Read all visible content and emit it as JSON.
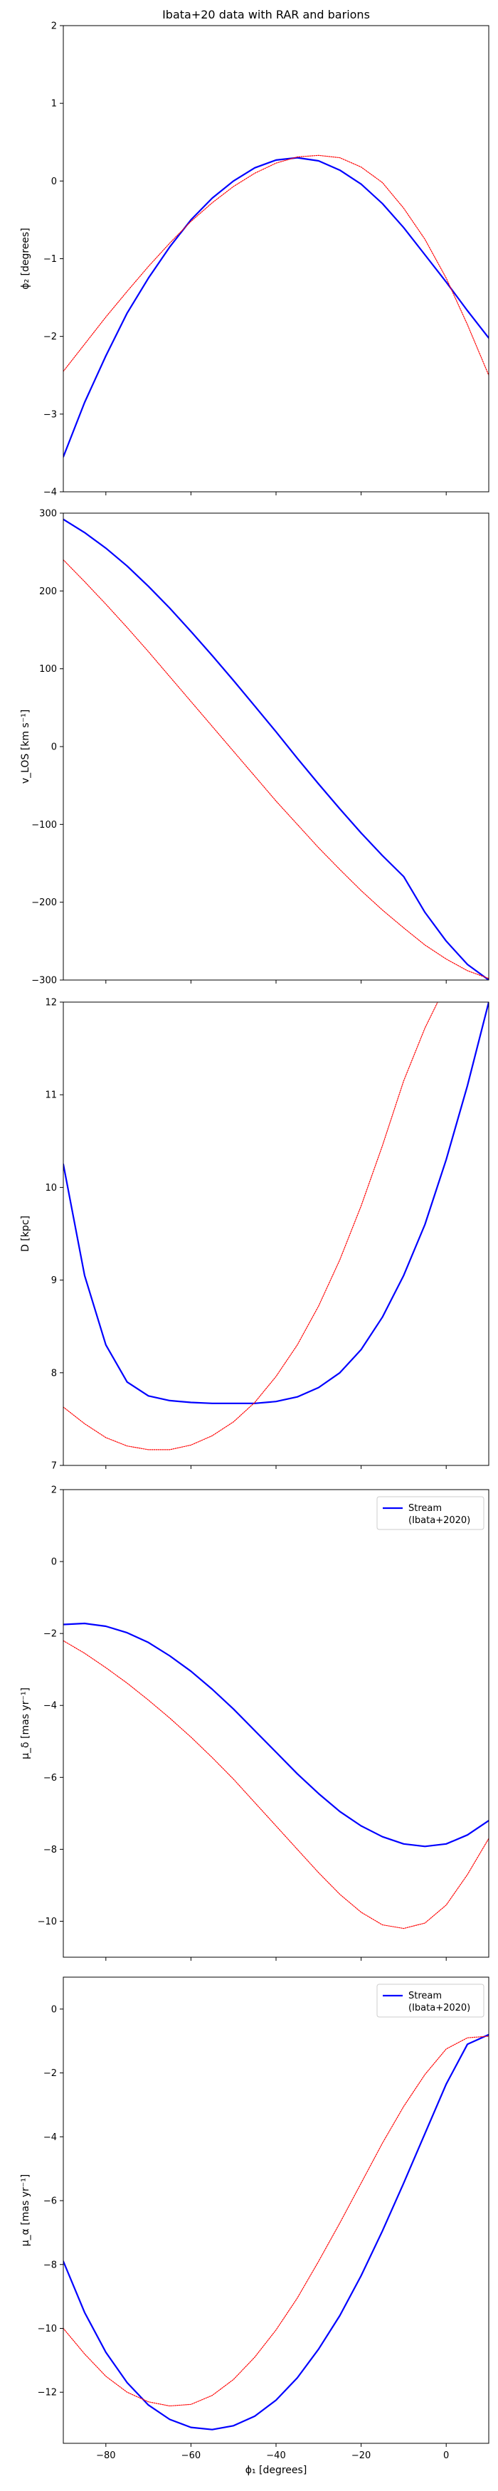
{
  "figure": {
    "title": "Ibata+20 data with RAR and barions"
  },
  "chart_data": [
    {
      "type": "line",
      "ylabel": "ϕ₂ [degrees]",
      "xlabel": "",
      "xlim": [
        -90,
        10
      ],
      "ylim": [
        -4,
        2
      ],
      "xticks": [
        -80,
        -60,
        -40,
        -20,
        0
      ],
      "yticks": [
        -4,
        -3,
        -2,
        -1,
        0,
        1,
        2
      ],
      "show_x_tick_labels": false,
      "legend": null,
      "series": [
        {
          "role": "model",
          "color": "#0000ff",
          "style": "solid",
          "x": [
            -90,
            -85,
            -80,
            -75,
            -70,
            -65,
            -60,
            -55,
            -50,
            -45,
            -40,
            -35,
            -30,
            -25,
            -20,
            -15,
            -10,
            -5,
            0,
            5,
            10
          ],
          "y": [
            -3.55,
            -2.85,
            -2.25,
            -1.7,
            -1.25,
            -0.85,
            -0.5,
            -0.22,
            0.0,
            0.17,
            0.27,
            0.3,
            0.26,
            0.14,
            -0.04,
            -0.29,
            -0.6,
            -0.95,
            -1.3,
            -1.67,
            -2.02
          ]
        },
        {
          "role": "data",
          "color": "#ff0000",
          "style": "dotted",
          "x": [
            -90,
            -85,
            -80,
            -75,
            -70,
            -65,
            -60,
            -55,
            -50,
            -45,
            -40,
            -35,
            -30,
            -25,
            -20,
            -15,
            -10,
            -5,
            0,
            5,
            10
          ],
          "y": [
            -2.45,
            -2.1,
            -1.75,
            -1.42,
            -1.1,
            -0.8,
            -0.52,
            -0.28,
            -0.07,
            0.1,
            0.23,
            0.31,
            0.33,
            0.3,
            0.18,
            -0.02,
            -0.35,
            -0.75,
            -1.25,
            -1.85,
            -2.5
          ]
        }
      ]
    },
    {
      "type": "line",
      "ylabel": "v_LOS [km s⁻¹]",
      "xlabel": "",
      "xlim": [
        -90,
        10
      ],
      "ylim": [
        -300,
        300
      ],
      "xticks": [
        -80,
        -60,
        -40,
        -20,
        0
      ],
      "yticks": [
        -300,
        -200,
        -100,
        0,
        100,
        200,
        300
      ],
      "show_x_tick_labels": false,
      "legend": null,
      "series": [
        {
          "role": "model",
          "color": "#0000ff",
          "style": "solid",
          "x": [
            -90,
            -85,
            -80,
            -75,
            -70,
            -65,
            -60,
            -55,
            -50,
            -45,
            -40,
            -35,
            -30,
            -25,
            -20,
            -15,
            -10,
            -5,
            0,
            5,
            10
          ],
          "y": [
            292,
            275,
            255,
            232,
            206,
            178,
            148,
            117,
            85,
            52,
            19,
            -15,
            -48,
            -80,
            -111,
            -140,
            -167,
            -213,
            -250,
            -280,
            -300
          ]
        },
        {
          "role": "data",
          "color": "#ff0000",
          "style": "dotted",
          "x": [
            -90,
            -85,
            -80,
            -75,
            -70,
            -65,
            -60,
            -55,
            -50,
            -45,
            -40,
            -35,
            -30,
            -25,
            -20,
            -15,
            -10,
            -5,
            0,
            5,
            10
          ],
          "y": [
            240,
            212,
            183,
            153,
            122,
            90,
            58,
            26,
            -6,
            -38,
            -70,
            -100,
            -130,
            -158,
            -185,
            -210,
            -233,
            -255,
            -273,
            -288,
            -298
          ]
        }
      ]
    },
    {
      "type": "line",
      "ylabel": "D [kpc]",
      "xlabel": "",
      "xlim": [
        -90,
        10
      ],
      "ylim": [
        7,
        12
      ],
      "xticks": [
        -80,
        -60,
        -40,
        -20,
        0
      ],
      "yticks": [
        7,
        8,
        9,
        10,
        11,
        12
      ],
      "show_x_tick_labels": false,
      "legend": null,
      "series": [
        {
          "role": "model",
          "color": "#0000ff",
          "style": "solid",
          "x": [
            -90,
            -85,
            -80,
            -75,
            -70,
            -65,
            -60,
            -55,
            -50,
            -45,
            -40,
            -35,
            -30,
            -25,
            -20,
            -15,
            -10,
            -5,
            0,
            5,
            10
          ],
          "y": [
            10.25,
            9.05,
            8.3,
            7.9,
            7.75,
            7.7,
            7.68,
            7.67,
            7.67,
            7.67,
            7.69,
            7.74,
            7.84,
            8.0,
            8.25,
            8.6,
            9.05,
            9.6,
            10.3,
            11.1,
            12.0
          ]
        },
        {
          "role": "data",
          "color": "#ff0000",
          "style": "dotted",
          "x": [
            -90,
            -85,
            -80,
            -75,
            -70,
            -65,
            -60,
            -55,
            -50,
            -45,
            -40,
            -35,
            -30,
            -25,
            -20,
            -15,
            -10,
            -5,
            -2
          ],
          "y": [
            7.63,
            7.45,
            7.3,
            7.21,
            7.17,
            7.17,
            7.22,
            7.32,
            7.47,
            7.68,
            7.96,
            8.3,
            8.72,
            9.22,
            9.8,
            10.45,
            11.15,
            11.72,
            12.0
          ]
        }
      ]
    },
    {
      "type": "line",
      "ylabel": "μ_δ [mas yr⁻¹]",
      "xlabel": "",
      "xlim": [
        -90,
        10
      ],
      "ylim": [
        -11,
        2
      ],
      "xticks": [
        -80,
        -60,
        -40,
        -20,
        0
      ],
      "yticks": [
        -10,
        -8,
        -6,
        -4,
        -2,
        0,
        2
      ],
      "show_x_tick_labels": false,
      "legend": {
        "position": "upper right",
        "entries": [
          "Stream",
          "(Ibata+2020)"
        ]
      },
      "series": [
        {
          "role": "model",
          "color": "#0000ff",
          "style": "solid",
          "x": [
            -90,
            -85,
            -80,
            -75,
            -70,
            -65,
            -60,
            -55,
            -50,
            -45,
            -40,
            -35,
            -30,
            -25,
            -20,
            -15,
            -10,
            -5,
            0,
            5,
            10
          ],
          "y": [
            -1.75,
            -1.72,
            -1.8,
            -1.98,
            -2.25,
            -2.62,
            -3.05,
            -3.55,
            -4.1,
            -4.7,
            -5.3,
            -5.9,
            -6.45,
            -6.95,
            -7.35,
            -7.65,
            -7.85,
            -7.92,
            -7.85,
            -7.6,
            -7.2
          ]
        },
        {
          "role": "data",
          "color": "#ff0000",
          "style": "dotted",
          "x": [
            -90,
            -85,
            -80,
            -75,
            -70,
            -65,
            -60,
            -55,
            -50,
            -45,
            -40,
            -35,
            -30,
            -25,
            -20,
            -15,
            -10,
            -5,
            0,
            5,
            10
          ],
          "y": [
            -2.2,
            -2.55,
            -2.95,
            -3.38,
            -3.85,
            -4.35,
            -4.88,
            -5.45,
            -6.05,
            -6.7,
            -7.35,
            -8.0,
            -8.65,
            -9.25,
            -9.75,
            -10.1,
            -10.2,
            -10.05,
            -9.55,
            -8.7,
            -7.7
          ]
        }
      ]
    },
    {
      "type": "line",
      "ylabel": "μ_α [mas yr⁻¹]",
      "xlabel": "ϕ₁ [degrees]",
      "xlim": [
        -90,
        10
      ],
      "ylim": [
        -13.6,
        1
      ],
      "xticks": [
        -80,
        -60,
        -40,
        -20,
        0
      ],
      "yticks": [
        -12,
        -10,
        -8,
        -6,
        -4,
        -2,
        0
      ],
      "show_x_tick_labels": true,
      "legend": {
        "position": "upper right",
        "entries": [
          "Stream",
          "(Ibata+2020)"
        ]
      },
      "series": [
        {
          "role": "model",
          "color": "#0000ff",
          "style": "solid",
          "x": [
            -90,
            -85,
            -80,
            -75,
            -70,
            -65,
            -60,
            -55,
            -50,
            -45,
            -40,
            -35,
            -30,
            -25,
            -20,
            -15,
            -10,
            -5,
            0,
            5,
            10
          ],
          "y": [
            -7.9,
            -9.5,
            -10.75,
            -11.7,
            -12.4,
            -12.85,
            -13.1,
            -13.17,
            -13.05,
            -12.75,
            -12.25,
            -11.55,
            -10.65,
            -9.6,
            -8.35,
            -6.95,
            -5.45,
            -3.9,
            -2.35,
            -1.1,
            -0.8
          ]
        },
        {
          "role": "data",
          "color": "#ff0000",
          "style": "dotted",
          "x": [
            -90,
            -85,
            -80,
            -75,
            -70,
            -65,
            -60,
            -55,
            -50,
            -45,
            -40,
            -35,
            -30,
            -25,
            -20,
            -15,
            -10,
            -5,
            0,
            5,
            10
          ],
          "y": [
            -10.0,
            -10.8,
            -11.5,
            -12.0,
            -12.3,
            -12.43,
            -12.38,
            -12.1,
            -11.6,
            -10.9,
            -10.05,
            -9.05,
            -7.9,
            -6.7,
            -5.45,
            -4.2,
            -3.05,
            -2.05,
            -1.25,
            -0.9,
            -0.85
          ]
        }
      ]
    }
  ]
}
